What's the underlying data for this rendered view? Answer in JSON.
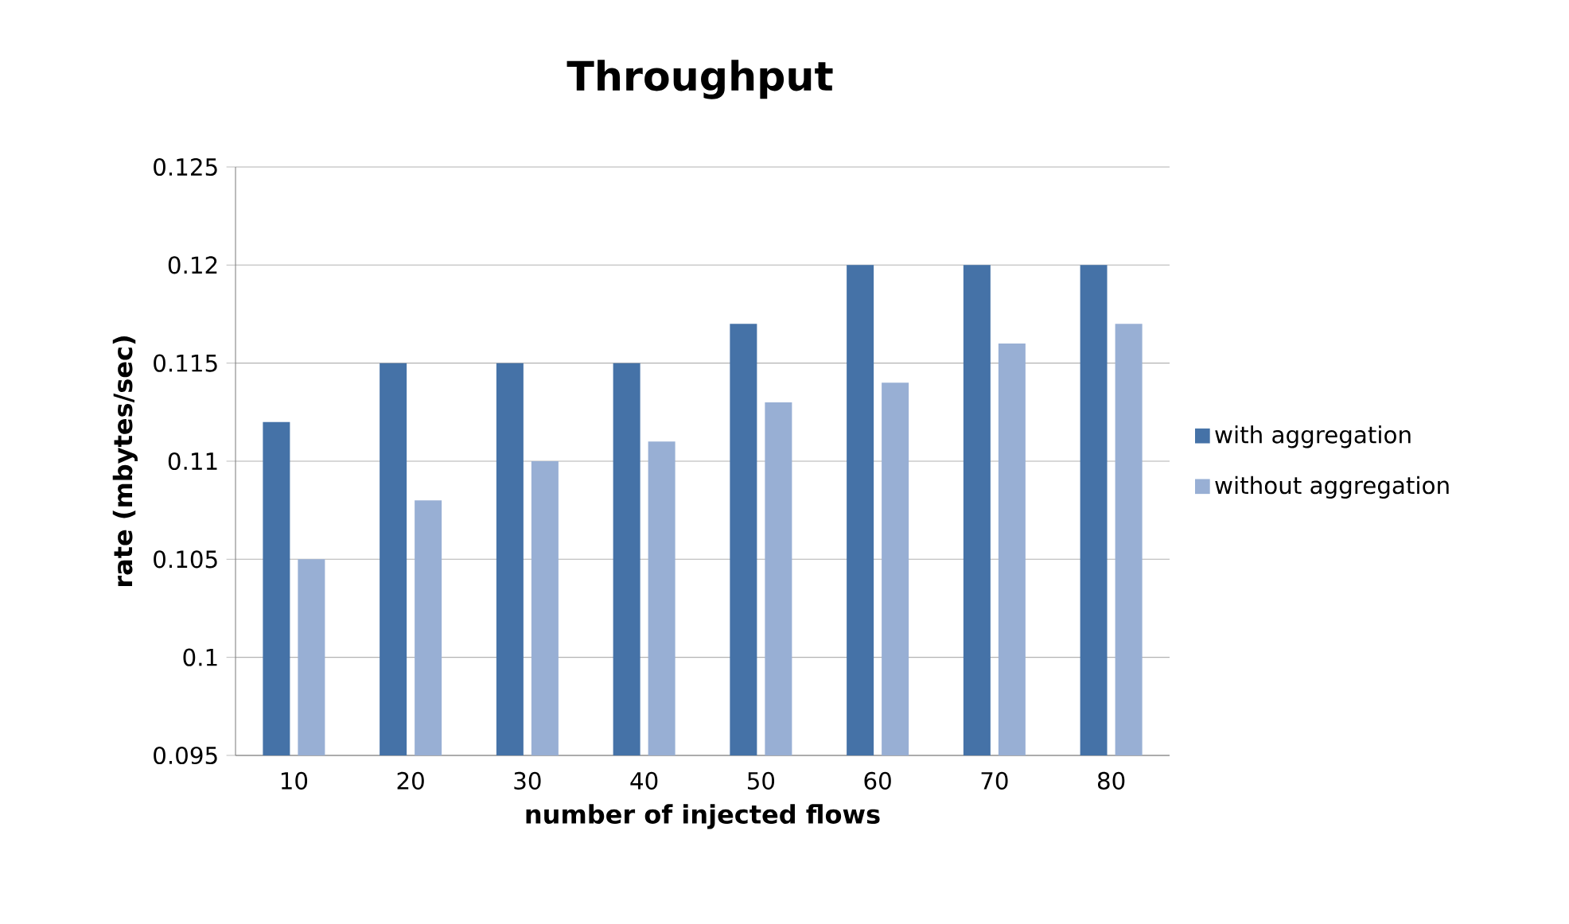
{
  "chart_data": {
    "type": "bar",
    "title": "Throughput",
    "xlabel": "number of injected flows",
    "ylabel": "rate (mbytes/sec)",
    "categories": [
      "10",
      "20",
      "30",
      "40",
      "50",
      "60",
      "70",
      "80"
    ],
    "series": [
      {
        "name": "with aggregation",
        "color": "#4572a7",
        "values": [
          0.112,
          0.115,
          0.115,
          0.115,
          0.117,
          0.12,
          0.12,
          0.12
        ]
      },
      {
        "name": "without aggregation",
        "color": "#98afd4",
        "values": [
          0.105,
          0.108,
          0.11,
          0.111,
          0.113,
          0.114,
          0.116,
          0.117
        ]
      }
    ],
    "ylim": [
      0.095,
      0.125
    ],
    "yticks": [
      0.095,
      0.1,
      0.105,
      0.11,
      0.115,
      0.12,
      0.125
    ],
    "grid": "y",
    "legend": "right"
  }
}
